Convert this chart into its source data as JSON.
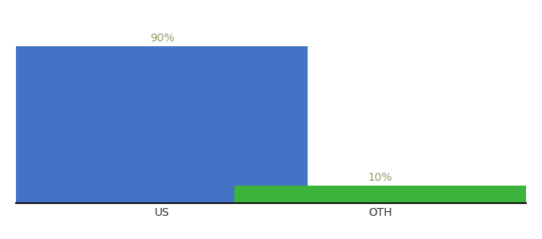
{
  "categories": [
    "US",
    "OTH"
  ],
  "values": [
    90,
    10
  ],
  "bar_colors": [
    "#4472c4",
    "#3cb33c"
  ],
  "label_texts": [
    "90%",
    "10%"
  ],
  "xlabel": "",
  "ylabel": "",
  "ylim": [
    0,
    100
  ],
  "background_color": "#ffffff",
  "bar_width": 0.6,
  "label_fontsize": 10,
  "tick_fontsize": 10,
  "label_color": "#999966",
  "axis_line_color": "#111111",
  "x_positions": [
    0.3,
    0.75
  ],
  "xlim": [
    0.0,
    1.05
  ]
}
